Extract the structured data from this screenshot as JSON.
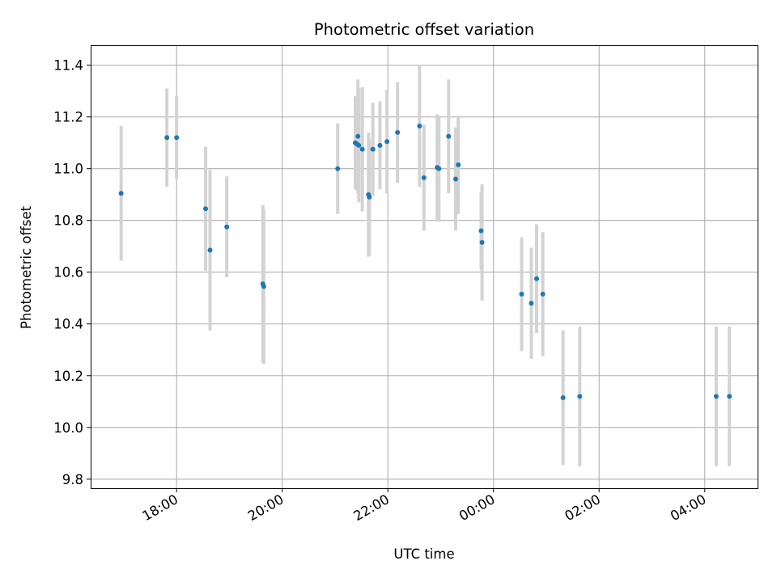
{
  "chart_data": {
    "type": "scatter",
    "title": "Photometric offset variation",
    "xlabel": "UTC time",
    "ylabel": "Photometric offset",
    "x_ticks": [
      "18:00",
      "20:00",
      "22:00",
      "00:00",
      "02:00",
      "04:00"
    ],
    "y_ticks": [
      "9.8",
      "10.0",
      "10.2",
      "10.4",
      "10.6",
      "10.8",
      "11.0",
      "11.2",
      "11.4"
    ],
    "grid": true,
    "colors": {
      "points": "#1f77b4",
      "errorbars": "#d3d3d3",
      "grid": "#b0b0b0"
    },
    "points": [
      {
        "x": "16:57",
        "y": 10.905,
        "err": 0.26
      },
      {
        "x": "17:49",
        "y": 11.12,
        "err": 0.19
      },
      {
        "x": "18:00",
        "y": 11.12,
        "err": 0.16
      },
      {
        "x": "18:33",
        "y": 10.845,
        "err": 0.24
      },
      {
        "x": "18:38",
        "y": 10.685,
        "err": 0.31
      },
      {
        "x": "18:57",
        "y": 10.775,
        "err": 0.195
      },
      {
        "x": "19:38",
        "y": 10.555,
        "err": 0.305
      },
      {
        "x": "19:39",
        "y": 10.545,
        "err": 0.3
      },
      {
        "x": "21:03",
        "y": 11.0,
        "err": 0.175
      },
      {
        "x": "21:23",
        "y": 11.1,
        "err": 0.18
      },
      {
        "x": "21:25",
        "y": 11.095,
        "err": 0.18
      },
      {
        "x": "21:26",
        "y": 11.125,
        "err": 0.22
      },
      {
        "x": "21:27",
        "y": 11.09,
        "err": 0.22
      },
      {
        "x": "21:31",
        "y": 11.075,
        "err": 0.24
      },
      {
        "x": "21:38",
        "y": 10.9,
        "err": 0.24
      },
      {
        "x": "21:39",
        "y": 10.89,
        "err": 0.225
      },
      {
        "x": "21:43",
        "y": 11.075,
        "err": 0.18
      },
      {
        "x": "21:51",
        "y": 11.09,
        "err": 0.17
      },
      {
        "x": "21:59",
        "y": 11.105,
        "err": 0.2
      },
      {
        "x": "22:11",
        "y": 11.14,
        "err": 0.195
      },
      {
        "x": "22:36",
        "y": 11.165,
        "err": 0.235
      },
      {
        "x": "22:41",
        "y": 10.965,
        "err": 0.205
      },
      {
        "x": "22:56",
        "y": 11.005,
        "err": 0.205
      },
      {
        "x": "22:58",
        "y": 11.0,
        "err": 0.205
      },
      {
        "x": "23:09",
        "y": 11.125,
        "err": 0.22
      },
      {
        "x": "23:17",
        "y": 10.96,
        "err": 0.2
      },
      {
        "x": "23:20",
        "y": 11.015,
        "err": 0.19
      },
      {
        "x": "23:46",
        "y": 10.76,
        "err": 0.15
      },
      {
        "x": "23:47",
        "y": 10.715,
        "err": 0.225
      },
      {
        "x": "00:32",
        "y": 10.515,
        "err": 0.22
      },
      {
        "x": "00:43",
        "y": 10.48,
        "err": 0.215
      },
      {
        "x": "00:49",
        "y": 10.575,
        "err": 0.21
      },
      {
        "x": "00:56",
        "y": 10.515,
        "err": 0.24
      },
      {
        "x": "01:19",
        "y": 10.115,
        "err": 0.26
      },
      {
        "x": "01:38",
        "y": 10.12,
        "err": 0.27
      },
      {
        "x": "04:13",
        "y": 10.12,
        "err": 0.27
      },
      {
        "x": "04:28",
        "y": 10.12,
        "err": 0.27
      }
    ]
  }
}
